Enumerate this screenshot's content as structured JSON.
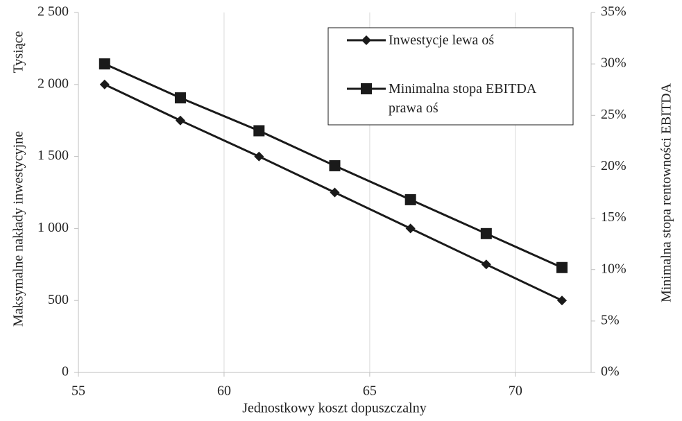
{
  "chart_data": {
    "type": "line",
    "x_label": "Jednostkowy koszt dopuszczalny",
    "y_label": "Maksymalne nakłady inwestycyjne",
    "y_unit_label": "Tysiące",
    "y2_label": "Minimalna stopa rentowności EBITDA",
    "x": [
      55.9,
      58.5,
      61.2,
      63.8,
      66.4,
      69.0,
      71.6
    ],
    "series": [
      {
        "name": "Inwestycje lewa oś",
        "color": "#1a1a1a",
        "marker": "diamond",
        "axis": "y",
        "values": [
          2000,
          1750,
          1500,
          1250,
          1000,
          750,
          500
        ]
      },
      {
        "name": "Minimalna stopa EBITDA prawa oś",
        "color": "#1a1a1a",
        "marker": "square",
        "axis": "y2",
        "values": [
          30,
          26.7,
          23.5,
          20.1,
          16.8,
          13.5,
          10.2
        ]
      }
    ],
    "xlim": [
      55,
      72.6
    ],
    "xticks": [
      55,
      60,
      65,
      70
    ],
    "ylim": [
      0,
      2500
    ],
    "yticks": [
      0,
      500,
      {
        "value": 1000,
        "label": "1 000"
      },
      {
        "value": 1500,
        "label": "1 500"
      },
      {
        "value": 2000,
        "label": "2 000"
      },
      {
        "value": 2500,
        "label": "2 500"
      }
    ],
    "y2lim": [
      0,
      35
    ],
    "y2ticks": [
      {
        "value": 0,
        "label": "0%"
      },
      {
        "value": 5,
        "label": "5%"
      },
      {
        "value": 10,
        "label": "10%"
      },
      {
        "value": 15,
        "label": "15%"
      },
      {
        "value": 20,
        "label": "20%"
      },
      {
        "value": 25,
        "label": "25%"
      },
      {
        "value": 30,
        "label": "30%"
      },
      {
        "value": 35,
        "label": "35%"
      }
    ],
    "grid": true,
    "legend": "top-right"
  }
}
